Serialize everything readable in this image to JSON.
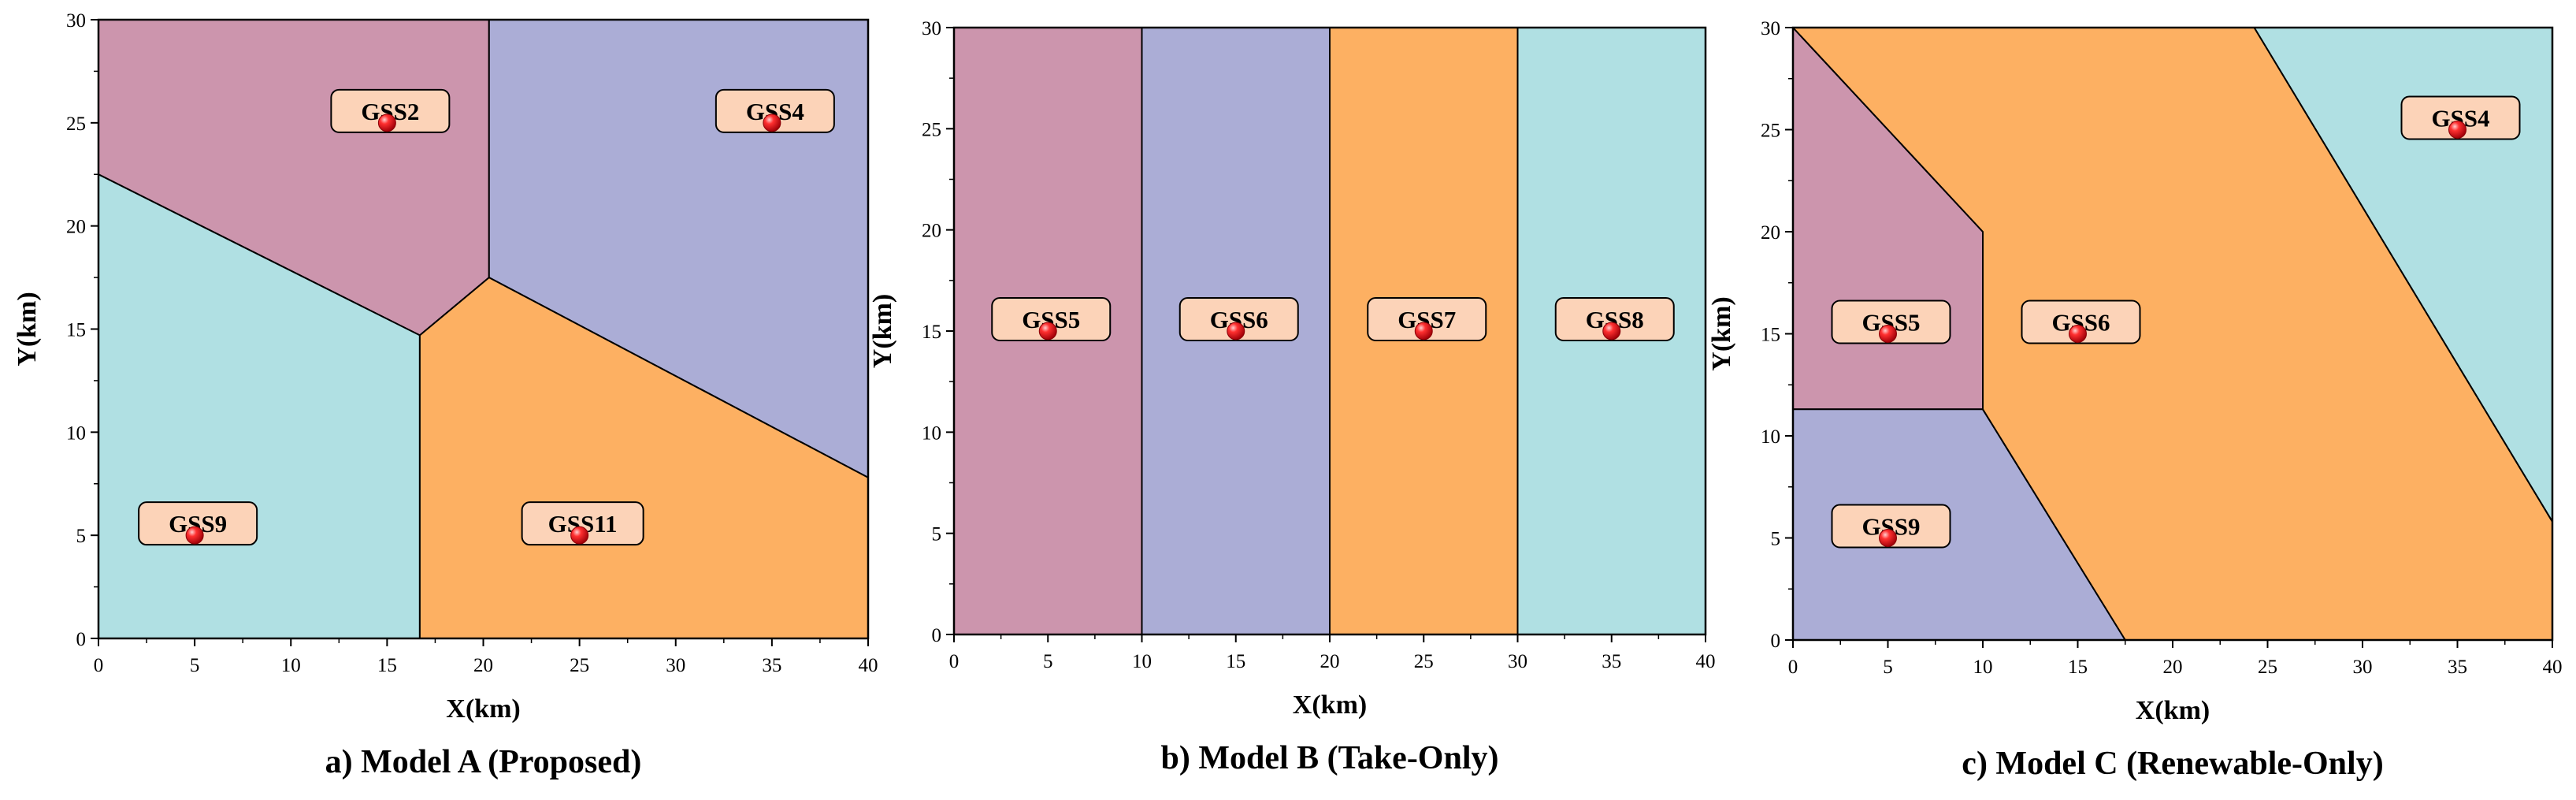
{
  "colors": {
    "pink": "#cc95ad",
    "lavender": "#abadd6",
    "orange": "#fdb062",
    "cyan": "#b0e0e3",
    "label_fill": "#fcd3b8",
    "point": "#e8101a"
  },
  "chart_data": [
    {
      "type": "region-map",
      "caption": "a) Model A (Proposed)",
      "xlabel": "X(km)",
      "ylabel": "Y(km)",
      "xlim": [
        0,
        40
      ],
      "ylim": [
        0,
        30
      ],
      "xticks": [
        0,
        5,
        10,
        15,
        20,
        25,
        30,
        35,
        40
      ],
      "yticks": [
        0,
        5,
        10,
        15,
        20,
        25,
        30
      ],
      "regions": [
        {
          "color": "#cc95ad",
          "polygon": [
            [
              0,
              22.5
            ],
            [
              0,
              30
            ],
            [
              20.3,
              30
            ],
            [
              20.3,
              17.5
            ],
            [
              16.7,
              14.7
            ]
          ]
        },
        {
          "color": "#abadd6",
          "polygon": [
            [
              20.3,
              30
            ],
            [
              40,
              30
            ],
            [
              40,
              7.8
            ],
            [
              20.3,
              17.5
            ]
          ]
        },
        {
          "color": "#b0e0e3",
          "polygon": [
            [
              0,
              0
            ],
            [
              0,
              22.5
            ],
            [
              16.7,
              14.7
            ],
            [
              16.7,
              0
            ]
          ]
        },
        {
          "color": "#fdb062",
          "polygon": [
            [
              16.7,
              0
            ],
            [
              16.7,
              14.7
            ],
            [
              20.3,
              17.5
            ],
            [
              40,
              7.8
            ],
            [
              40,
              0
            ]
          ]
        }
      ],
      "stations": [
        {
          "label": "GSS2",
          "x": 15,
          "y": 25
        },
        {
          "label": "GSS4",
          "x": 35,
          "y": 25
        },
        {
          "label": "GSS9",
          "x": 5,
          "y": 5
        },
        {
          "label": "GSS11",
          "x": 25,
          "y": 5
        }
      ]
    },
    {
      "type": "region-map",
      "caption": "b) Model B (Take-Only)",
      "xlabel": "X(km)",
      "ylabel": "Y(km)",
      "xlim": [
        0,
        40
      ],
      "ylim": [
        0,
        30
      ],
      "xticks": [
        0,
        5,
        10,
        15,
        20,
        25,
        30,
        35,
        40
      ],
      "yticks": [
        0,
        5,
        10,
        15,
        20,
        25,
        30
      ],
      "regions": [
        {
          "color": "#cc95ad",
          "polygon": [
            [
              0,
              0
            ],
            [
              0,
              30
            ],
            [
              10,
              30
            ],
            [
              10,
              0
            ]
          ]
        },
        {
          "color": "#abadd6",
          "polygon": [
            [
              10,
              0
            ],
            [
              10,
              30
            ],
            [
              20,
              30
            ],
            [
              20,
              0
            ]
          ]
        },
        {
          "color": "#fdb062",
          "polygon": [
            [
              20,
              0
            ],
            [
              20,
              30
            ],
            [
              30,
              30
            ],
            [
              30,
              0
            ]
          ]
        },
        {
          "color": "#b0e0e3",
          "polygon": [
            [
              30,
              0
            ],
            [
              30,
              30
            ],
            [
              40,
              30
            ],
            [
              40,
              0
            ]
          ]
        }
      ],
      "stations": [
        {
          "label": "GSS5",
          "x": 5,
          "y": 15
        },
        {
          "label": "GSS6",
          "x": 15,
          "y": 15
        },
        {
          "label": "GSS7",
          "x": 25,
          "y": 15
        },
        {
          "label": "GSS8",
          "x": 35,
          "y": 15
        }
      ]
    },
    {
      "type": "region-map",
      "caption": "c) Model C (Renewable-Only)",
      "xlabel": "X(km)",
      "ylabel": "Y(km)",
      "xlim": [
        0,
        40
      ],
      "ylim": [
        0,
        30
      ],
      "xticks": [
        0,
        5,
        10,
        15,
        20,
        25,
        30,
        35,
        40
      ],
      "yticks": [
        0,
        5,
        10,
        15,
        20,
        25,
        30
      ],
      "regions": [
        {
          "color": "#cc95ad",
          "polygon": [
            [
              0,
              11.3
            ],
            [
              0,
              30
            ],
            [
              10,
              20
            ],
            [
              10,
              11.3
            ]
          ]
        },
        {
          "color": "#abadd6",
          "polygon": [
            [
              0,
              0
            ],
            [
              0,
              11.3
            ],
            [
              10,
              11.3
            ],
            [
              17.5,
              0
            ]
          ]
        },
        {
          "color": "#fdb062",
          "polygon": [
            [
              0,
              30
            ],
            [
              24.3,
              30
            ],
            [
              40,
              5.8
            ],
            [
              40,
              0
            ],
            [
              17.5,
              0
            ],
            [
              10,
              11.3
            ],
            [
              10,
              20
            ]
          ]
        },
        {
          "color": "#b0e0e3",
          "polygon": [
            [
              24.3,
              30
            ],
            [
              40,
              30
            ],
            [
              40,
              5.8
            ]
          ]
        }
      ],
      "stations": [
        {
          "label": "GSS4",
          "x": 35,
          "y": 25
        },
        {
          "label": "GSS5",
          "x": 5,
          "y": 15
        },
        {
          "label": "GSS6",
          "x": 15,
          "y": 15
        },
        {
          "label": "GSS9",
          "x": 5,
          "y": 5
        }
      ]
    }
  ]
}
